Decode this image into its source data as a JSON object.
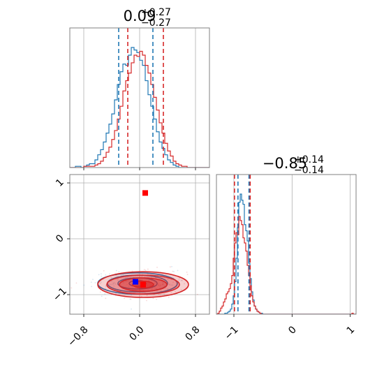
{
  "colors": {
    "blue": "#1f77b4",
    "red": "#d62728",
    "grid": "#b0b0b0",
    "axis": "#808080"
  },
  "chart_data": [
    {
      "type": "histogram",
      "panel": "top-left",
      "title": {
        "main": "0.09",
        "sup": "+0.27",
        "sub": "−0.27"
      },
      "xlim": [
        -1.0,
        1.0
      ],
      "grid": true,
      "bin_edges_start": -1.0,
      "bin_width": 0.04,
      "series": [
        {
          "color": "blue",
          "counts": [
            0,
            0,
            1,
            1,
            0,
            1,
            2,
            3,
            3,
            6,
            10,
            14,
            20,
            27,
            34,
            42,
            53,
            65,
            75,
            81,
            80,
            88,
            94,
            92,
            90,
            84,
            80,
            68,
            57,
            48,
            38,
            28,
            20,
            15,
            10,
            6,
            4,
            2,
            1,
            0,
            0,
            0,
            0,
            0,
            0,
            0,
            0,
            0,
            0,
            0
          ],
          "quantile_lines": [
            -0.3,
            0.19
          ]
        },
        {
          "color": "red",
          "counts": [
            0,
            0,
            0,
            0,
            0,
            1,
            1,
            1,
            1,
            2,
            3,
            5,
            8,
            12,
            16,
            22,
            29,
            38,
            48,
            60,
            68,
            74,
            82,
            88,
            87,
            91,
            88,
            80,
            74,
            65,
            55,
            45,
            35,
            27,
            19,
            13,
            9,
            5,
            3,
            2,
            1,
            1,
            0,
            0,
            0,
            0,
            0,
            0,
            0,
            0
          ],
          "quantile_lines": [
            -0.17,
            0.34
          ]
        }
      ]
    },
    {
      "type": "contour-scatter",
      "panel": "bottom-left",
      "xlim": [
        -1.0,
        1.0
      ],
      "ylim": [
        -1.35,
        1.15
      ],
      "grid": true,
      "x_ticks": [
        {
          "value": -0.8,
          "label": "−0.8"
        },
        {
          "value": 0.0,
          "label": "0.0"
        },
        {
          "value": 0.8,
          "label": "0.8"
        }
      ],
      "y_ticks": [
        {
          "value": 1,
          "label": "1"
        },
        {
          "value": 0,
          "label": "0"
        },
        {
          "value": -1,
          "label": "−1"
        }
      ],
      "markers": [
        {
          "color": "red",
          "x": 0.08,
          "y": 0.82
        },
        {
          "color": "red",
          "x": 0.05,
          "y": -0.82
        },
        {
          "color": "blue",
          "x": -0.06,
          "y": -0.77
        }
      ],
      "contours": [
        {
          "color": "blue",
          "cx": -0.03,
          "cy": -0.8,
          "levels": [
            [
              0.12,
              0.05
            ],
            [
              0.28,
              0.1
            ],
            [
              0.43,
              0.15
            ],
            [
              0.57,
              0.19
            ]
          ]
        },
        {
          "color": "red",
          "cx": 0.05,
          "cy": -0.82,
          "levels": [
            [
              0.15,
              0.06
            ],
            [
              0.34,
              0.12
            ],
            [
              0.52,
              0.17
            ],
            [
              0.65,
              0.23
            ]
          ]
        }
      ]
    },
    {
      "type": "histogram",
      "panel": "bottom-right",
      "title": {
        "main": "−0.85",
        "sup": "+0.14",
        "sub": "−0.14"
      },
      "xlim": [
        -1.3,
        1.1
      ],
      "grid": true,
      "x_ticks": [
        {
          "value": -1,
          "label": "−1"
        },
        {
          "value": 0,
          "label": "0"
        },
        {
          "value": 1,
          "label": "1"
        }
      ],
      "bin_edges_start": -1.3,
      "bin_width": 0.024,
      "series": [
        {
          "color": "blue",
          "counts": [
            0,
            0,
            0,
            0,
            0,
            0,
            1,
            1,
            2,
            3,
            5,
            10,
            18,
            32,
            55,
            85,
            110,
            118,
            112,
            108,
            88,
            82,
            72,
            50,
            35,
            22,
            14,
            8,
            5,
            3,
            2,
            1,
            1,
            0,
            0,
            0,
            0,
            0,
            0,
            0,
            0,
            0,
            0,
            0,
            0,
            0,
            0,
            0,
            0,
            0,
            0,
            0,
            0,
            0,
            0,
            0,
            0,
            0,
            0,
            0,
            0,
            0,
            0,
            0,
            0,
            0,
            0,
            0,
            0,
            0,
            0,
            0,
            0,
            0,
            0,
            0,
            0,
            0,
            0,
            0,
            0,
            0,
            0,
            0,
            0,
            0,
            0,
            0,
            0,
            0,
            0,
            0,
            0,
            0,
            0,
            0,
            0,
            0,
            0,
            0
          ],
          "quantile_lines": [
            -0.93,
            -0.74
          ]
        },
        {
          "color": "red",
          "counts": [
            0,
            1,
            3,
            6,
            8,
            12,
            15,
            20,
            22,
            25,
            30,
            38,
            55,
            70,
            80,
            78,
            96,
            92,
            88,
            75,
            70,
            62,
            48,
            38,
            28,
            18,
            12,
            8,
            5,
            3,
            2,
            1,
            0,
            0,
            0,
            0,
            0,
            0,
            0,
            0,
            0,
            0,
            0,
            0,
            0,
            0,
            0,
            0,
            0,
            0,
            0,
            0,
            0,
            0,
            0,
            0,
            0,
            0,
            0,
            0,
            0,
            0,
            0,
            0,
            0,
            0,
            0,
            0,
            0,
            0,
            0,
            0,
            0,
            0,
            0,
            0,
            0,
            0,
            0,
            0,
            0,
            0,
            0,
            0,
            0,
            0,
            0,
            0,
            0,
            0,
            0,
            0,
            0,
            0,
            0,
            0,
            0,
            1,
            0,
            0
          ],
          "quantile_lines": [
            -0.99,
            -0.72
          ]
        }
      ]
    }
  ]
}
